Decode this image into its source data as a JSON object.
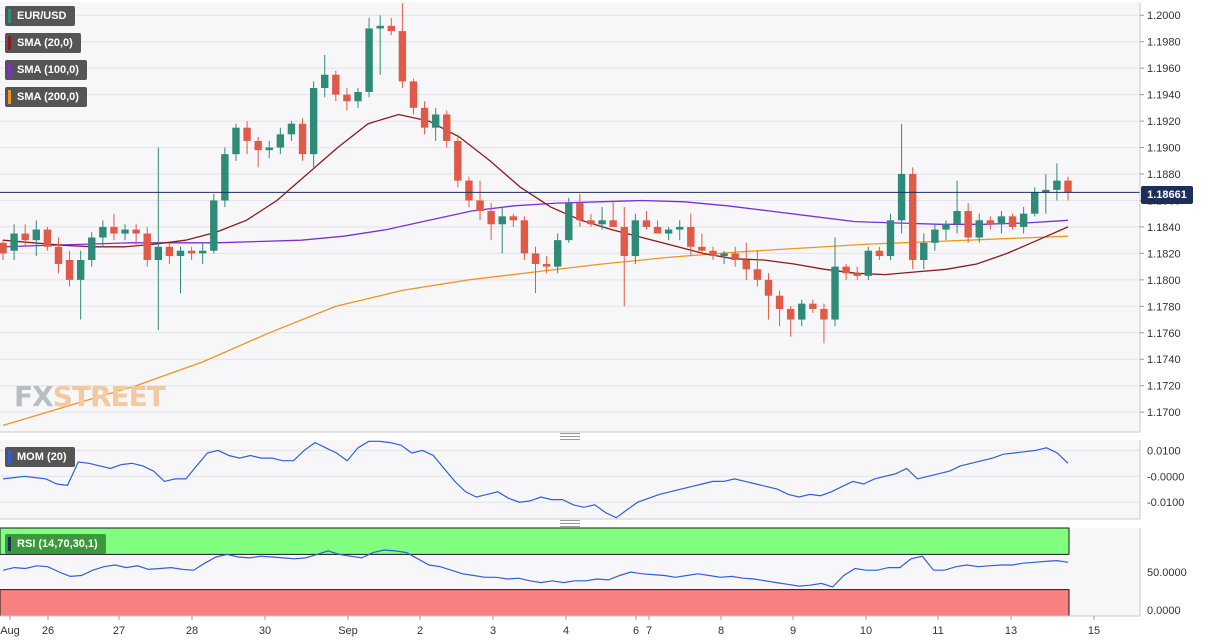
{
  "chart": {
    "symbol_label": "EUR/USD",
    "indicators": [
      {
        "label": "SMA (20,0)",
        "color": "#8b1a1a"
      },
      {
        "label": "SMA (100,0)",
        "color": "#7b2fd6"
      },
      {
        "label": "SMA (200,0)",
        "color": "#f0961e"
      }
    ],
    "current_price": "1.18661",
    "watermark": {
      "part1": "FX",
      "part2": "STREET"
    }
  },
  "chart_data": [
    {
      "type": "candlestick",
      "title": "EUR/USD",
      "ylim": [
        1.1685,
        1.201
      ],
      "yticks": [
        "1.2000",
        "1.1980",
        "1.1960",
        "1.1940",
        "1.1920",
        "1.1900",
        "1.1880",
        "1.1860",
        "1.1840",
        "1.1820",
        "1.1800",
        "1.1780",
        "1.1760",
        "1.1740",
        "1.1720",
        "1.1700"
      ],
      "xticks": [
        "Aug",
        "26",
        "27",
        "28",
        "30",
        "Sep",
        "2",
        "3",
        "4",
        "6",
        "7",
        "8",
        "9",
        "10",
        "11",
        "13",
        "15"
      ],
      "up_color": "#2e8b78",
      "down_color": "#e05a47",
      "candles": [
        [
          1.1828,
          1.183,
          1.1815,
          1.182
        ],
        [
          1.1822,
          1.1842,
          1.1815,
          1.1835
        ],
        [
          1.1835,
          1.1842,
          1.1825,
          1.183
        ],
        [
          1.183,
          1.1845,
          1.1818,
          1.1838
        ],
        [
          1.1838,
          1.184,
          1.1822,
          1.1825
        ],
        [
          1.1825,
          1.1832,
          1.1805,
          1.1812
        ],
        [
          1.1815,
          1.1822,
          1.1795,
          1.18
        ],
        [
          1.18,
          1.1822,
          1.177,
          1.1815
        ],
        [
          1.1815,
          1.1836,
          1.181,
          1.1832
        ],
        [
          1.1832,
          1.1845,
          1.1825,
          1.184
        ],
        [
          1.184,
          1.185,
          1.183,
          1.1835
        ],
        [
          1.1835,
          1.1842,
          1.183,
          1.1838
        ],
        [
          1.1838,
          1.1842,
          1.1825,
          1.1835
        ],
        [
          1.1835,
          1.184,
          1.181,
          1.1815
        ],
        [
          1.1815,
          1.19,
          1.1762,
          1.1825
        ],
        [
          1.1825,
          1.1828,
          1.1812,
          1.1818
        ],
        [
          1.1818,
          1.1825,
          1.179,
          1.1822
        ],
        [
          1.1822,
          1.1825,
          1.1815,
          1.182
        ],
        [
          1.182,
          1.1828,
          1.1812,
          1.1822
        ],
        [
          1.1822,
          1.1865,
          1.182,
          1.186
        ],
        [
          1.186,
          1.19,
          1.1855,
          1.1895
        ],
        [
          1.1895,
          1.1918,
          1.189,
          1.1915
        ],
        [
          1.1915,
          1.192,
          1.1895,
          1.1905
        ],
        [
          1.1905,
          1.1908,
          1.1885,
          1.1898
        ],
        [
          1.1898,
          1.1905,
          1.1892,
          1.19
        ],
        [
          1.19,
          1.1915,
          1.1895,
          1.191
        ],
        [
          1.191,
          1.192,
          1.1905,
          1.1918
        ],
        [
          1.1918,
          1.1922,
          1.189,
          1.1895
        ],
        [
          1.1895,
          1.195,
          1.1885,
          1.1945
        ],
        [
          1.1945,
          1.197,
          1.1938,
          1.1955
        ],
        [
          1.1955,
          1.1958,
          1.1935,
          1.194
        ],
        [
          1.194,
          1.1945,
          1.1928,
          1.1935
        ],
        [
          1.1935,
          1.1945,
          1.193,
          1.1942
        ],
        [
          1.1942,
          1.1998,
          1.1938,
          1.199
        ],
        [
          1.199,
          1.2,
          1.1955,
          1.1992
        ],
        [
          1.1992,
          1.1998,
          1.1985,
          1.1988
        ],
        [
          1.1988,
          1.2009,
          1.1945,
          1.195
        ],
        [
          1.195,
          1.1952,
          1.1925,
          1.193
        ],
        [
          1.193,
          1.1935,
          1.191,
          1.1915
        ],
        [
          1.1915,
          1.193,
          1.1905,
          1.1925
        ],
        [
          1.1925,
          1.1928,
          1.19,
          1.1905
        ],
        [
          1.1905,
          1.191,
          1.187,
          1.1875
        ],
        [
          1.1875,
          1.1878,
          1.1855,
          1.186
        ],
        [
          1.186,
          1.1875,
          1.1845,
          1.1852
        ],
        [
          1.1852,
          1.1858,
          1.183,
          1.1842
        ],
        [
          1.1842,
          1.1855,
          1.182,
          1.1848
        ],
        [
          1.1848,
          1.185,
          1.184,
          1.1845
        ],
        [
          1.1845,
          1.1848,
          1.1815,
          1.182
        ],
        [
          1.182,
          1.1825,
          1.179,
          1.1812
        ],
        [
          1.1812,
          1.1818,
          1.1805,
          1.181
        ],
        [
          1.181,
          1.1835,
          1.1805,
          1.183
        ],
        [
          1.183,
          1.1862,
          1.1828,
          1.1858
        ],
        [
          1.1858,
          1.1865,
          1.184,
          1.1845
        ],
        [
          1.1845,
          1.185,
          1.184,
          1.1842
        ],
        [
          1.1842,
          1.1855,
          1.1838,
          1.1845
        ],
        [
          1.1845,
          1.186,
          1.1842,
          1.184
        ],
        [
          1.184,
          1.1855,
          1.178,
          1.1818
        ],
        [
          1.1818,
          1.185,
          1.1812,
          1.1845
        ],
        [
          1.1845,
          1.1852,
          1.1838,
          1.184
        ],
        [
          1.184,
          1.1845,
          1.1835,
          1.1835
        ],
        [
          1.1835,
          1.184,
          1.183,
          1.1838
        ],
        [
          1.1838,
          1.1845,
          1.183,
          1.184
        ],
        [
          1.184,
          1.185,
          1.1818,
          1.1825
        ],
        [
          1.1825,
          1.1835,
          1.182,
          1.1822
        ],
        [
          1.1822,
          1.1825,
          1.1815,
          1.1818
        ],
        [
          1.1818,
          1.1822,
          1.1812,
          1.182
        ],
        [
          1.182,
          1.1825,
          1.181,
          1.1815
        ],
        [
          1.1815,
          1.1828,
          1.18,
          1.1808
        ],
        [
          1.1808,
          1.1822,
          1.1795,
          1.18
        ],
        [
          1.18,
          1.1805,
          1.177,
          1.1788
        ],
        [
          1.1788,
          1.1792,
          1.1765,
          1.1778
        ],
        [
          1.1778,
          1.178,
          1.1757,
          1.177
        ],
        [
          1.177,
          1.1785,
          1.1765,
          1.1782
        ],
        [
          1.1782,
          1.1785,
          1.1775,
          1.1778
        ],
        [
          1.1778,
          1.1782,
          1.1752,
          1.177
        ],
        [
          1.177,
          1.1832,
          1.1765,
          1.181
        ],
        [
          1.181,
          1.1812,
          1.18,
          1.1805
        ],
        [
          1.1805,
          1.181,
          1.18,
          1.1803
        ],
        [
          1.1803,
          1.1825,
          1.18,
          1.1822
        ],
        [
          1.1822,
          1.1825,
          1.1815,
          1.1818
        ],
        [
          1.1818,
          1.185,
          1.1815,
          1.1845
        ],
        [
          1.1845,
          1.1918,
          1.1835,
          1.188
        ],
        [
          1.188,
          1.1885,
          1.1808,
          1.1815
        ],
        [
          1.1815,
          1.1835,
          1.1808,
          1.1828
        ],
        [
          1.1828,
          1.1842,
          1.1822,
          1.1838
        ],
        [
          1.1838,
          1.1845,
          1.183,
          1.1842
        ],
        [
          1.1842,
          1.1875,
          1.1835,
          1.1852
        ],
        [
          1.1852,
          1.1858,
          1.1828,
          1.1832
        ],
        [
          1.1832,
          1.185,
          1.1828,
          1.1845
        ],
        [
          1.1845,
          1.1848,
          1.1838,
          1.1842
        ],
        [
          1.1842,
          1.1852,
          1.1835,
          1.1848
        ],
        [
          1.1848,
          1.185,
          1.1838,
          1.184
        ],
        [
          1.184,
          1.1855,
          1.1835,
          1.185
        ],
        [
          1.185,
          1.187,
          1.1848,
          1.1866
        ],
        [
          1.1866,
          1.188,
          1.185,
          1.1868
        ],
        [
          1.1868,
          1.1888,
          1.186,
          1.1875
        ],
        [
          1.1875,
          1.1878,
          1.186,
          1.1866
        ]
      ],
      "sma20": [
        1.183,
        1.1828,
        1.1826,
        1.1825,
        1.1825,
        1.1827,
        1.183,
        1.1836,
        1.1845,
        1.186,
        1.188,
        1.19,
        1.1918,
        1.1925,
        1.192,
        1.1908,
        1.189,
        1.187,
        1.1855,
        1.1845,
        1.1838,
        1.1832,
        1.1826,
        1.182,
        1.1816,
        1.1815,
        1.1812,
        1.1808,
        1.1805,
        1.1804,
        1.1806,
        1.1808,
        1.1812,
        1.182,
        1.183,
        1.184
      ],
      "sma100": [
        1.1825,
        1.1826,
        1.1827,
        1.1828,
        1.1828,
        1.1828,
        1.1829,
        1.183,
        1.1833,
        1.1838,
        1.1845,
        1.1852,
        1.1856,
        1.1858,
        1.1859,
        1.186,
        1.1859,
        1.1856,
        1.1852,
        1.1848,
        1.1844,
        1.1843,
        1.1842,
        1.1842,
        1.1843,
        1.1845
      ],
      "sma200": [
        1.169,
        1.1705,
        1.172,
        1.1738,
        1.176,
        1.178,
        1.1792,
        1.18,
        1.1806,
        1.1812,
        1.1817,
        1.1821,
        1.1824,
        1.1827,
        1.1829,
        1.1831,
        1.1833
      ],
      "current_price": 1.18661
    },
    {
      "type": "line",
      "title": "MOM (20)",
      "ylim": [
        -0.0165,
        0.014
      ],
      "yticks": [
        "0.0100",
        "-0.0000",
        "-0.0100"
      ],
      "series": [
        {
          "name": "MOM (20)",
          "color": "#2f5fd9",
          "values": [
            -0.001,
            -0.0005,
            0.0,
            -0.0005,
            -0.001,
            -0.003,
            -0.0035,
            0.0055,
            0.005,
            0.004,
            0.003,
            0.0045,
            0.005,
            0.004,
            0.002,
            -0.002,
            -0.001,
            -0.001,
            0.004,
            0.009,
            0.01,
            0.008,
            0.007,
            0.008,
            0.007,
            0.007,
            0.006,
            0.006,
            0.01,
            0.013,
            0.011,
            0.009,
            0.006,
            0.011,
            0.0135,
            0.0135,
            0.013,
            0.012,
            0.009,
            0.01,
            0.008,
            0.003,
            -0.002,
            -0.006,
            -0.008,
            -0.007,
            -0.006,
            -0.0085,
            -0.01,
            -0.0095,
            -0.008,
            -0.009,
            -0.009,
            -0.011,
            -0.012,
            -0.011,
            -0.014,
            -0.016,
            -0.013,
            -0.01,
            -0.0085,
            -0.007,
            -0.006,
            -0.005,
            -0.004,
            -0.003,
            -0.002,
            -0.002,
            -0.001,
            -0.002,
            -0.003,
            -0.004,
            -0.005,
            -0.007,
            -0.008,
            -0.007,
            -0.0075,
            -0.006,
            -0.004,
            -0.002,
            -0.003,
            -0.001,
            0.0,
            0.001,
            0.003,
            -0.001,
            0.0,
            0.001,
            0.002,
            0.004,
            0.005,
            0.006,
            0.007,
            0.0085,
            0.009,
            0.0095,
            0.01,
            0.011,
            0.009,
            0.005
          ]
        }
      ]
    },
    {
      "type": "line",
      "title": "RSI (14,70,30,1)",
      "ylim": [
        0,
        100
      ],
      "yticks": [
        "50.0000",
        "0.0000"
      ],
      "bands": {
        "upper": 70,
        "lower": 30,
        "upper_color": "#80ff80",
        "lower_color": "#f88080"
      },
      "series": [
        {
          "name": "RSI (14,70,30,1)",
          "color": "#2f5fd9",
          "values": [
            52,
            55,
            54,
            57,
            56,
            50,
            45,
            46,
            52,
            56,
            58,
            55,
            57,
            53,
            54,
            55,
            53,
            52,
            60,
            67,
            70,
            67,
            66,
            68,
            67,
            66,
            65,
            66,
            70,
            74,
            70,
            68,
            66,
            72,
            75,
            74,
            72,
            65,
            58,
            56,
            52,
            48,
            46,
            44,
            44,
            42,
            43,
            40,
            38,
            40,
            38,
            40,
            40,
            42,
            41,
            46,
            50,
            48,
            47,
            46,
            44,
            46,
            48,
            46,
            44,
            45,
            43,
            42,
            40,
            38,
            36,
            34,
            35,
            37,
            33,
            46,
            54,
            52,
            52,
            55,
            55,
            65,
            68,
            52,
            52,
            56,
            58,
            56,
            57,
            58,
            58,
            60,
            61,
            62,
            63,
            61
          ]
        }
      ]
    }
  ]
}
